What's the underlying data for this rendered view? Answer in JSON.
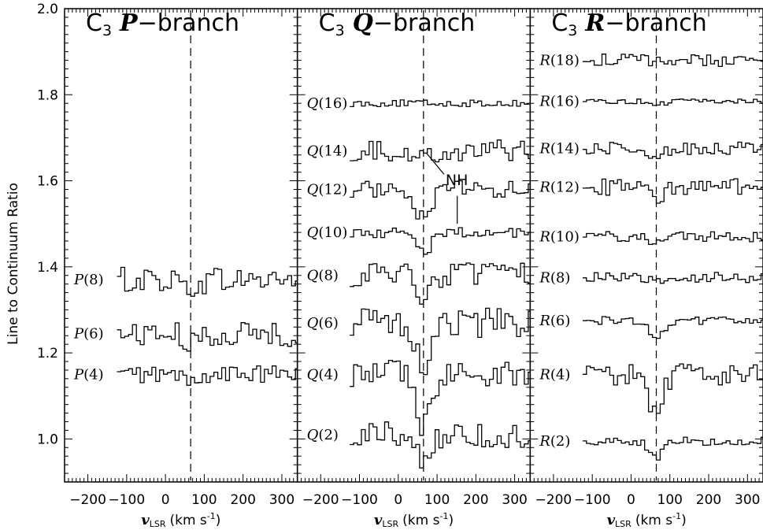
{
  "figure": {
    "ylabel": "Line to Continuum Ratio",
    "xlabel_var": "v",
    "xlabel_sub": "LSR",
    "xlabel_units": "(km s",
    "xlabel_units_exp": "-1",
    "xlabel_units_close": ")",
    "ylim": [
      0.9,
      2.0
    ],
    "xlim": [
      -260,
      340
    ],
    "y_ticks": [
      "1.0",
      "1.2",
      "1.4",
      "1.6",
      "1.8",
      "2.0"
    ],
    "x_ticks": [
      "-200",
      "-100",
      "0",
      "100",
      "200",
      "300"
    ],
    "ref_velocity": 65
  },
  "chart_data": [
    {
      "type": "line",
      "panel": "P",
      "title_prefix": "C",
      "title_sub": "3",
      "title_letter": "P",
      "title_suffix": "−branch",
      "x_range": [
        -125,
        340
      ],
      "series": [
        {
          "name": "P(8)",
          "label": "P(8)",
          "offset": 1.37,
          "amp": 0.03,
          "dip": 0.02,
          "xstart": -125,
          "xend": 340
        },
        {
          "name": "P(6)",
          "label": "P(6)",
          "offset": 1.245,
          "amp": 0.03,
          "dip": 0.03,
          "xstart": -125,
          "xend": 340
        },
        {
          "name": "P(4)",
          "label": "P(4)",
          "offset": 1.15,
          "amp": 0.02,
          "dip": 0.02,
          "xstart": -125,
          "xend": 340
        }
      ]
    },
    {
      "type": "line",
      "panel": "Q",
      "title_prefix": "C",
      "title_sub": "3",
      "title_letter": "Q",
      "title_suffix": "−branch",
      "annotation": "NH",
      "series": [
        {
          "name": "Q(16)",
          "label": "Q(16)",
          "offset": 1.78,
          "amp": 0.008,
          "dip": 0.0,
          "xstart": -125,
          "xend": 340
        },
        {
          "name": "Q(14)",
          "label": "Q(14)",
          "offset": 1.67,
          "amp": 0.025,
          "dip": 0.02,
          "xstart": -125,
          "xend": 340
        },
        {
          "name": "Q(12)",
          "label": "Q(12)",
          "offset": 1.58,
          "amp": 0.02,
          "dip": 0.07,
          "xstart": -125,
          "xend": 340
        },
        {
          "name": "Q(10)",
          "label": "Q(10)",
          "offset": 1.48,
          "amp": 0.012,
          "dip": 0.05,
          "xstart": -125,
          "xend": 340
        },
        {
          "name": "Q(8)",
          "label": "Q(8)",
          "offset": 1.38,
          "amp": 0.03,
          "dip": 0.04,
          "xstart": -125,
          "xend": 340
        },
        {
          "name": "Q(6)",
          "label": "Q(6)",
          "offset": 1.27,
          "amp": 0.035,
          "dip": 0.09,
          "xstart": -125,
          "xend": 340
        },
        {
          "name": "Q(4)",
          "label": "Q(4)",
          "offset": 1.15,
          "amp": 0.035,
          "dip": 0.12,
          "xstart": -125,
          "xend": 340
        },
        {
          "name": "Q(2)",
          "label": "Q(2)",
          "offset": 1.01,
          "amp": 0.03,
          "dip": 0.06,
          "xstart": -125,
          "xend": 340
        }
      ]
    },
    {
      "type": "line",
      "panel": "R",
      "title_prefix": "C",
      "title_sub": "3",
      "title_letter": "R",
      "title_suffix": "−branch",
      "series": [
        {
          "name": "R(18)",
          "label": "R(18)",
          "offset": 1.88,
          "amp": 0.015,
          "dip": 0.0,
          "xstart": -125,
          "xend": 340
        },
        {
          "name": "R(16)",
          "label": "R(16)",
          "offset": 1.785,
          "amp": 0.006,
          "dip": 0.01,
          "xstart": -125,
          "xend": 340
        },
        {
          "name": "R(14)",
          "label": "R(14)",
          "offset": 1.675,
          "amp": 0.015,
          "dip": 0.02,
          "xstart": -125,
          "xend": 340
        },
        {
          "name": "R(12)",
          "label": "R(12)",
          "offset": 1.585,
          "amp": 0.02,
          "dip": 0.025,
          "xstart": -125,
          "xend": 340
        },
        {
          "name": "R(10)",
          "label": "R(10)",
          "offset": 1.47,
          "amp": 0.012,
          "dip": 0.02,
          "xstart": -125,
          "xend": 340
        },
        {
          "name": "R(8)",
          "label": "R(8)",
          "offset": 1.375,
          "amp": 0.012,
          "dip": 0.01,
          "xstart": -125,
          "xend": 340
        },
        {
          "name": "R(6)",
          "label": "R(6)",
          "offset": 1.275,
          "amp": 0.01,
          "dip": 0.045,
          "xstart": -125,
          "xend": 340
        },
        {
          "name": "R(4)",
          "label": "R(4)",
          "offset": 1.15,
          "amp": 0.025,
          "dip": 0.09,
          "xstart": -125,
          "xend": 340
        },
        {
          "name": "R(2)",
          "label": "R(2)",
          "offset": 0.995,
          "amp": 0.01,
          "dip": 0.04,
          "xstart": -125,
          "xend": 340
        }
      ]
    }
  ]
}
